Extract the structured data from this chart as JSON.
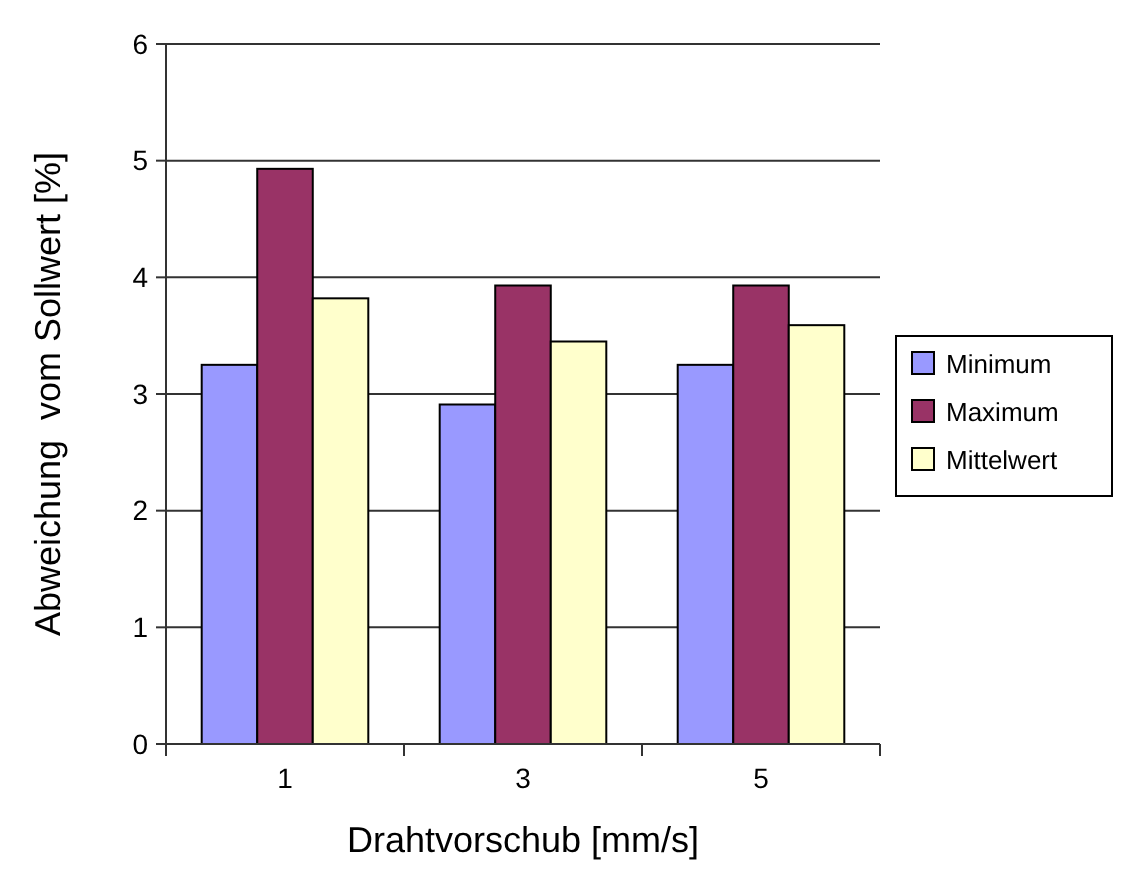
{
  "chart_data": {
    "type": "bar",
    "categories": [
      "1",
      "3",
      "5"
    ],
    "xlabel": "Drahtvorschub [mm/s]",
    "ylabel": "Abweichung  vom Sollwert [%]",
    "ylim": [
      0,
      6
    ],
    "yticks": [
      0,
      1,
      2,
      3,
      4,
      5,
      6
    ],
    "grid": "y",
    "legend": "right",
    "series": [
      {
        "name": "Minimum",
        "color": "#9999ff",
        "values": [
          3.25,
          2.91,
          3.25
        ]
      },
      {
        "name": "Maximum",
        "color": "#993366",
        "values": [
          4.93,
          3.93,
          3.93
        ]
      },
      {
        "name": "Mittelwert",
        "color": "#ffffcc",
        "values": [
          3.82,
          3.45,
          3.59
        ]
      }
    ]
  }
}
